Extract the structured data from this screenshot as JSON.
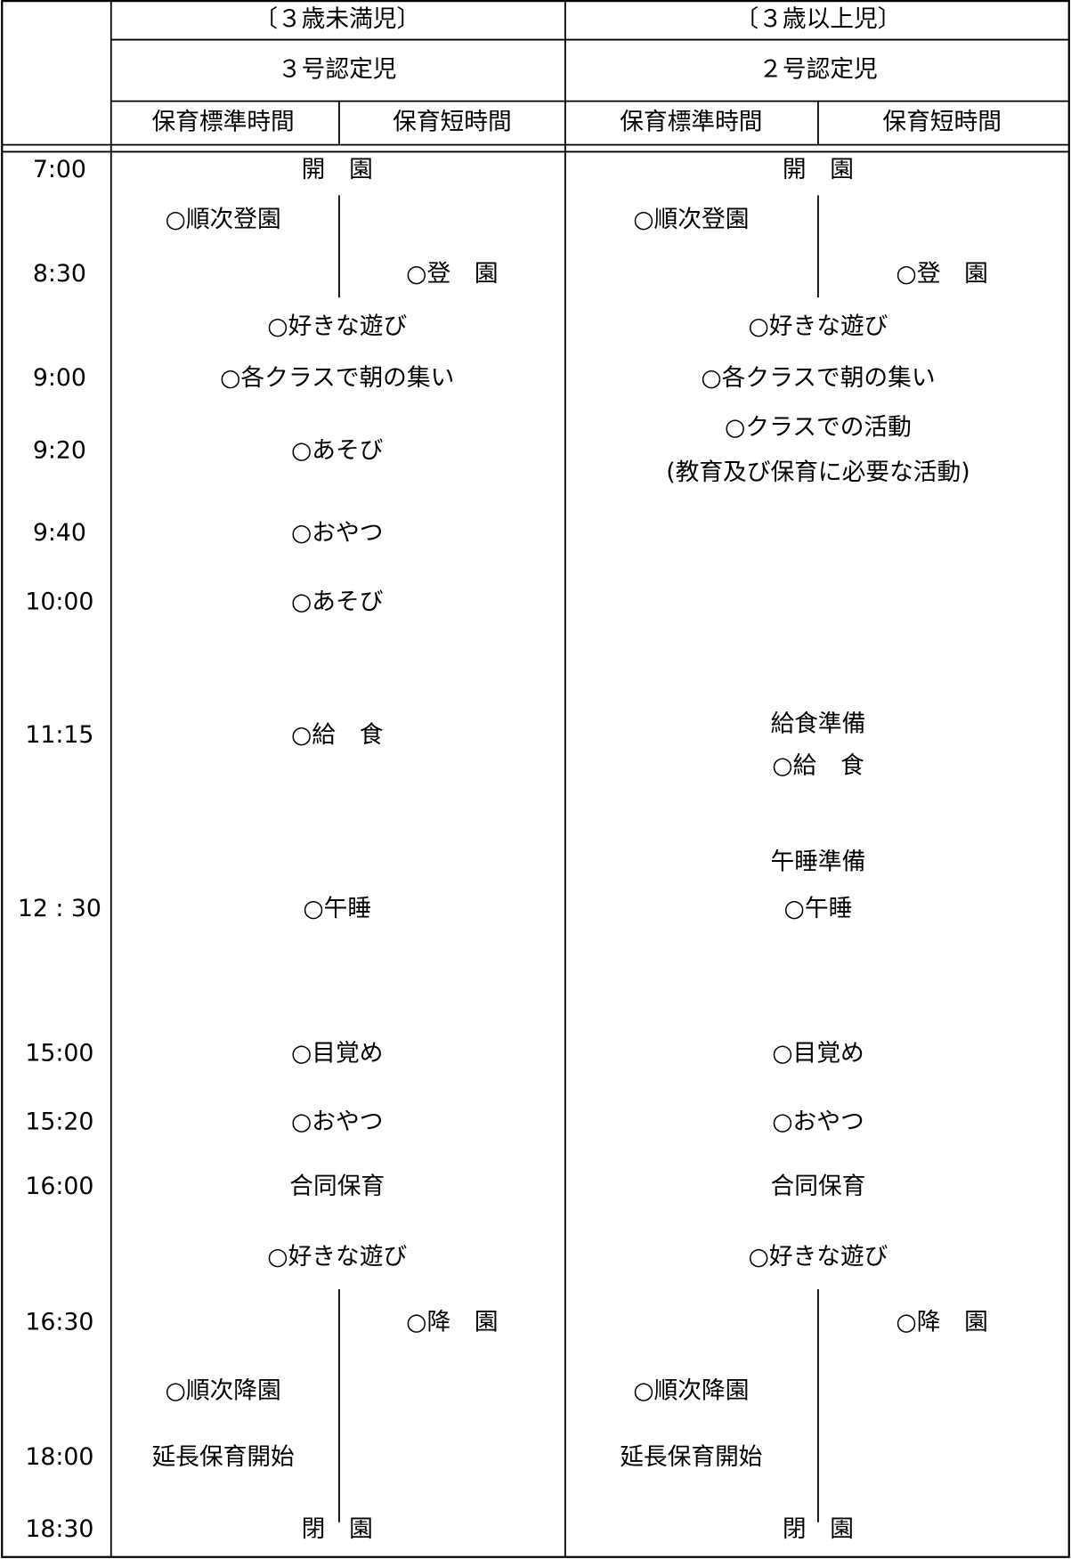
{
  "header": {
    "groups": [
      {
        "age": "〔３歳未満児〕",
        "certification": "３号認定児",
        "columns": [
          "保育標準時間",
          "保育短時間"
        ]
      },
      {
        "age": "〔３歳以上児〕",
        "certification": "２号認定児",
        "columns": [
          "保育標準時間",
          "保育短時間"
        ]
      }
    ]
  },
  "rows": [
    {
      "time": "7:00",
      "under3": "開　園",
      "over3": "開　園"
    },
    {
      "under3": {
        "standard": "○順次登園"
      },
      "over3": {
        "standard": "○順次登園"
      }
    },
    {
      "time": "8:30",
      "under3": {
        "short": "○登　園"
      },
      "over3": {
        "short": "○登　園"
      }
    },
    {
      "under3": "○好きな遊び",
      "over3": "○好きな遊び"
    },
    {
      "time": "9:00",
      "under3": "○各クラスで朝の集い",
      "over3": "○各クラスで朝の集い"
    },
    {
      "time": "9:20",
      "under3": "○あそび",
      "over3": [
        "○クラスでの活動",
        "(教育及び保育に必要な活動)"
      ]
    },
    {
      "time": "9:40",
      "under3": "○おやつ"
    },
    {
      "time": "10:00",
      "under3": "○あそび"
    },
    {
      "time": "11:15",
      "under3": "○給　食",
      "over3": [
        "給食準備",
        "○給　食"
      ]
    },
    {
      "time": "12 : 30",
      "under3": "○午睡",
      "over3": [
        "午睡準備",
        "○午睡"
      ]
    },
    {
      "time": "15:00",
      "under3": "○目覚め",
      "over3": "○目覚め"
    },
    {
      "time": "15:20",
      "under3": "○おやつ",
      "over3": "○おやつ"
    },
    {
      "time": "16:00",
      "under3": "合同保育",
      "over3": "合同保育"
    },
    {
      "under3": "○好きな遊び",
      "over3": "○好きな遊び"
    },
    {
      "time": "16:30",
      "under3": {
        "short": "○降　園"
      },
      "over3": {
        "short": "○降　園"
      }
    },
    {
      "under3": {
        "standard": "○順次降園"
      },
      "over3": {
        "standard": "○順次降園"
      }
    },
    {
      "time": "18:00",
      "under3": {
        "standard": "延長保育開始"
      },
      "over3": {
        "standard": "延長保育開始"
      }
    },
    {
      "time": "18:30",
      "under3": "閉　園",
      "over3": "閉　園"
    }
  ]
}
